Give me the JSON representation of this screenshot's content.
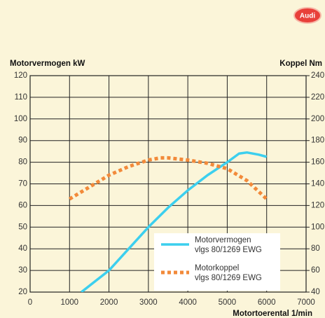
{
  "chart_data": {
    "type": "line",
    "logo": "Audi",
    "ylabel": "Motorvermogen kW",
    "y2label": "Koppel Nm",
    "xlabel": "Motortoerental 1/min",
    "xlim": [
      0,
      7000
    ],
    "xticks": [
      0,
      1000,
      2000,
      3000,
      4000,
      5000,
      6000,
      7000
    ],
    "ylim": [
      20,
      120
    ],
    "yticks": [
      20,
      30,
      40,
      50,
      60,
      70,
      80,
      90,
      100,
      110,
      120
    ],
    "y2lim": [
      40,
      240
    ],
    "y2ticks": [
      40,
      60,
      80,
      100,
      120,
      140,
      160,
      180,
      200,
      220,
      240
    ],
    "grid": true,
    "series": [
      {
        "name": "Motorvermogen",
        "standard": "vlgs 80/1269 EWG",
        "color": "#3ccfee",
        "style": "solid",
        "x": [
          1300,
          2000,
          2500,
          3000,
          3500,
          4000,
          4500,
          5000,
          5300,
          5500,
          5800,
          6000
        ],
        "values": [
          20,
          30,
          40,
          50,
          59,
          67,
          74,
          80,
          84,
          84.5,
          83.5,
          82.5
        ]
      },
      {
        "name": "Motorkoppel",
        "standard": "vlgs 80/1269 EWG",
        "color": "#f28a3a",
        "style": "dotted",
        "axis": "y2",
        "x": [
          1000,
          1500,
          2000,
          2500,
          3000,
          3300,
          3500,
          4000,
          4500,
          5000,
          5500,
          6000
        ],
        "values": [
          126,
          137,
          148,
          156,
          162,
          164,
          164,
          162,
          159,
          154,
          143,
          126
        ]
      }
    ],
    "legend": "lower right"
  }
}
